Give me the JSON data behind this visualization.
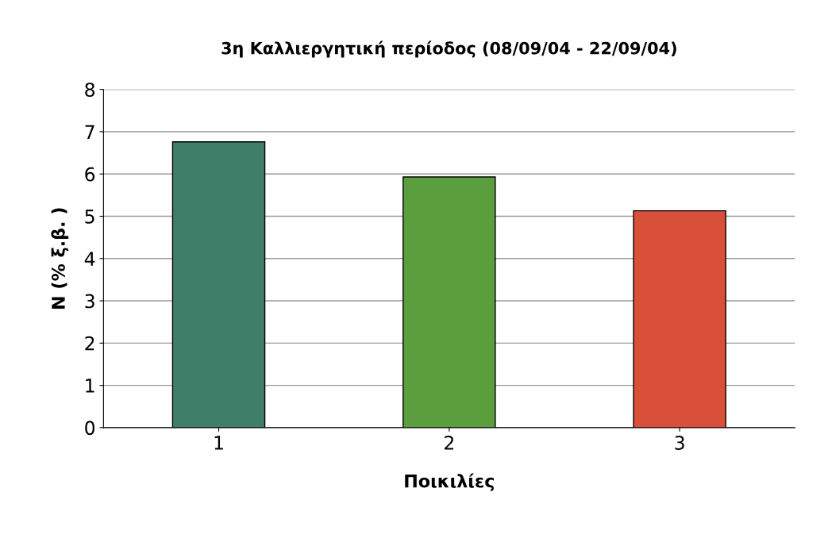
{
  "chart_data": {
    "type": "bar",
    "title": "3η Καλλιεργητική περίοδος (08/09/04 - 22/09/04)",
    "xlabel": "Ποικιλίες",
    "ylabel": "N (% ξ.β. )",
    "categories": [
      "1",
      "2",
      "3"
    ],
    "values": [
      6.76,
      5.93,
      5.13
    ],
    "colors": [
      "#3f7f6a",
      "#5a9e3e",
      "#d9503a"
    ],
    "ylim": [
      0,
      8
    ],
    "yticks": [
      0,
      1,
      2,
      3,
      4,
      5,
      6,
      7,
      8
    ],
    "grid": "y",
    "legend": false
  }
}
